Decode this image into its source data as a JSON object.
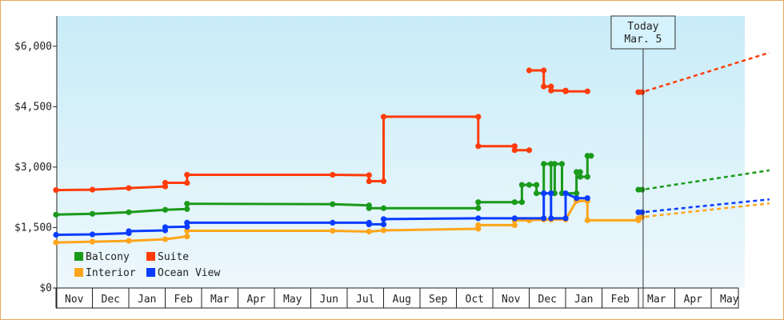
{
  "chart_data": {
    "type": "line",
    "title": "",
    "xlabel": "",
    "ylabel": "",
    "ylim": [
      0,
      6750
    ],
    "y_ticks": [
      0,
      1500,
      3000,
      4500,
      6000
    ],
    "y_tick_labels": [
      "$0",
      "$1,500",
      "$3,000",
      "$4,500",
      "$6,000"
    ],
    "x_start": "Nov 1",
    "x_months": [
      "Nov",
      "Dec",
      "Jan",
      "Feb",
      "Mar",
      "Apr",
      "May",
      "Jun",
      "Jul",
      "Aug",
      "Sep",
      "Oct",
      "Nov",
      "Dec",
      "Jan",
      "Feb",
      "Mar",
      "Apr",
      "May"
    ],
    "today": {
      "label_line1": "Today",
      "label_line2": "Mar. 5",
      "month_index": 16.13
    },
    "grid": false,
    "legend_position": "bottom-left",
    "colors": {
      "Balcony": "#1a9a1a",
      "Suite": "#ff3c0a",
      "Interior": "#ffa51a",
      "Ocean View": "#0a3cff",
      "plot_bg_top": "#c8ecf8",
      "plot_bg_bottom": "#eef8fc"
    },
    "series": [
      {
        "name": "Balcony",
        "points": [
          [
            0,
            1820
          ],
          [
            1.0,
            1840
          ],
          [
            2.0,
            1880
          ],
          [
            3.0,
            1940
          ],
          [
            3.6,
            1960
          ],
          [
            3.6,
            2090
          ],
          [
            7.6,
            2080
          ],
          [
            8.6,
            2050
          ],
          [
            8.6,
            1980
          ],
          [
            9.0,
            1980
          ],
          [
            11.6,
            1980
          ],
          [
            11.6,
            2130
          ],
          [
            12.6,
            2130
          ],
          [
            12.8,
            2130
          ],
          [
            12.8,
            2560
          ],
          [
            13.0,
            2560
          ],
          [
            13.2,
            2560
          ],
          [
            13.2,
            2350
          ],
          [
            13.4,
            2350
          ],
          [
            13.4,
            3080
          ],
          [
            13.6,
            3080
          ],
          [
            13.6,
            2350
          ],
          [
            13.7,
            2350
          ],
          [
            13.7,
            3080
          ],
          [
            13.9,
            3080
          ],
          [
            13.9,
            2350
          ],
          [
            14.3,
            2350
          ],
          [
            14.3,
            2880
          ],
          [
            14.4,
            2880
          ],
          [
            14.4,
            2760
          ],
          [
            14.6,
            2760
          ],
          [
            14.6,
            3280
          ],
          [
            14.7,
            3280
          ]
        ],
        "forecast": [
          [
            16.0,
            2440
          ],
          [
            16.1,
            2440
          ],
          [
            19.6,
            2920
          ]
        ]
      },
      {
        "name": "Suite",
        "points": [
          [
            0,
            2430
          ],
          [
            1.0,
            2440
          ],
          [
            2.0,
            2480
          ],
          [
            3.0,
            2520
          ],
          [
            3.0,
            2610
          ],
          [
            3.6,
            2610
          ],
          [
            3.6,
            2810
          ],
          [
            7.6,
            2810
          ],
          [
            8.6,
            2800
          ],
          [
            8.6,
            2650
          ],
          [
            9.0,
            2650
          ],
          [
            9.0,
            4250
          ],
          [
            11.6,
            4250
          ],
          [
            11.6,
            3520
          ],
          [
            12.6,
            3520
          ],
          [
            12.6,
            3420
          ],
          [
            13.0,
            3420
          ]
        ],
        "segment2": [
          [
            13.0,
            5400
          ],
          [
            13.4,
            5400
          ],
          [
            13.4,
            5000
          ],
          [
            13.6,
            5000
          ],
          [
            13.6,
            4900
          ],
          [
            14.0,
            4900
          ],
          [
            14.0,
            4880
          ],
          [
            14.6,
            4880
          ]
        ],
        "forecast": [
          [
            16.0,
            4860
          ],
          [
            16.1,
            4860
          ],
          [
            19.6,
            5840
          ]
        ]
      },
      {
        "name": "Interior",
        "points": [
          [
            0,
            1130
          ],
          [
            1.0,
            1150
          ],
          [
            2.0,
            1170
          ],
          [
            3.0,
            1210
          ],
          [
            3.6,
            1280
          ],
          [
            3.6,
            1420
          ],
          [
            7.6,
            1420
          ],
          [
            8.6,
            1400
          ],
          [
            9.0,
            1430
          ],
          [
            11.6,
            1470
          ],
          [
            11.6,
            1560
          ],
          [
            12.6,
            1560
          ],
          [
            12.6,
            1680
          ],
          [
            13.0,
            1680
          ],
          [
            13.4,
            1700
          ],
          [
            13.6,
            1700
          ],
          [
            14.0,
            1700
          ],
          [
            14.3,
            2160
          ],
          [
            14.6,
            2160
          ],
          [
            14.6,
            1680
          ],
          [
            16.0,
            1680
          ]
        ],
        "forecast": [
          [
            16.0,
            1730
          ],
          [
            16.1,
            1760
          ],
          [
            19.6,
            2100
          ]
        ]
      },
      {
        "name": "Ocean View",
        "points": [
          [
            0,
            1320
          ],
          [
            1.0,
            1330
          ],
          [
            2.0,
            1360
          ],
          [
            2.0,
            1410
          ],
          [
            3.0,
            1430
          ],
          [
            3.0,
            1510
          ],
          [
            3.6,
            1520
          ],
          [
            3.6,
            1620
          ],
          [
            7.6,
            1620
          ],
          [
            8.6,
            1620
          ],
          [
            8.6,
            1580
          ],
          [
            9.0,
            1580
          ],
          [
            9.0,
            1710
          ],
          [
            11.6,
            1730
          ],
          [
            12.6,
            1730
          ],
          [
            13.4,
            1730
          ],
          [
            13.4,
            2350
          ],
          [
            13.6,
            2350
          ],
          [
            13.6,
            1730
          ],
          [
            14.0,
            1730
          ],
          [
            14.0,
            2350
          ],
          [
            14.3,
            2230
          ],
          [
            14.6,
            2230
          ]
        ],
        "forecast": [
          [
            16.0,
            1880
          ],
          [
            16.1,
            1880
          ],
          [
            19.6,
            2200
          ]
        ]
      }
    ]
  }
}
